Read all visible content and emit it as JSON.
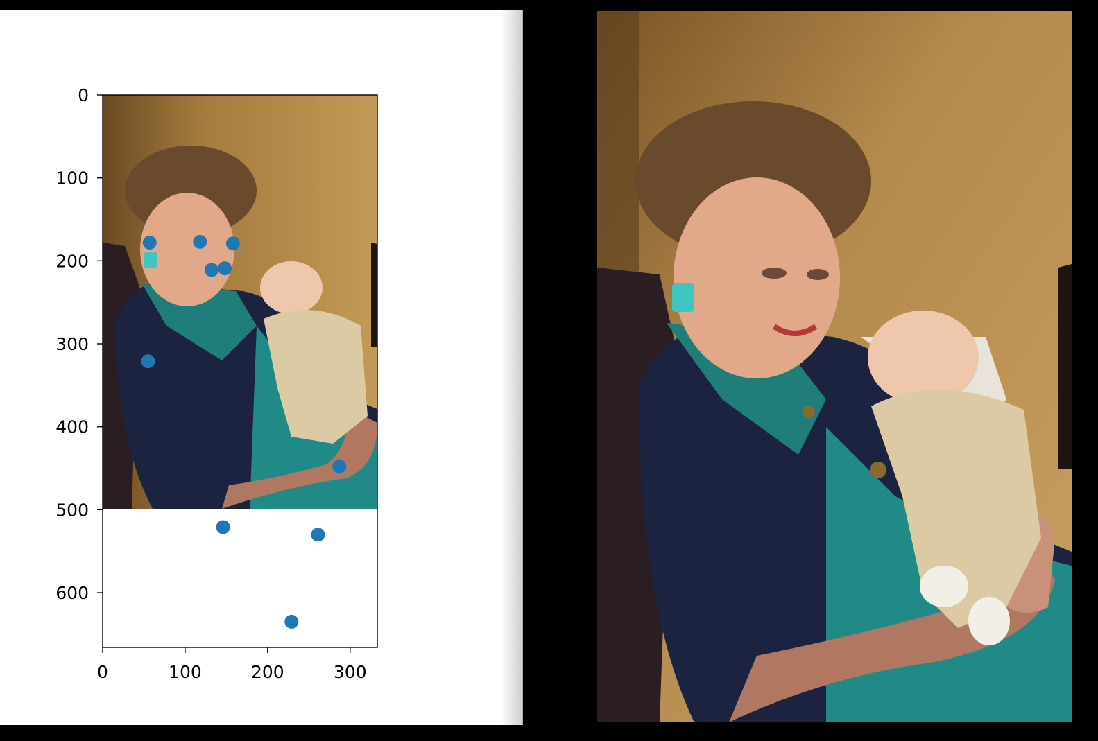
{
  "chart_data": {
    "type": "scatter",
    "title": "",
    "xlabel": "",
    "ylabel": "",
    "xlim": [
      0,
      333
    ],
    "ylim": [
      666,
      0
    ],
    "image_extent_y": 500,
    "xticks": [
      0,
      100,
      200,
      300
    ],
    "yticks": [
      0,
      100,
      200,
      300,
      400,
      500,
      600
    ],
    "grid": false,
    "point_color": "#1f77b4",
    "x": [
      57,
      118,
      158,
      132,
      148,
      55,
      287,
      146,
      261,
      229
    ],
    "y": [
      178,
      177,
      179,
      211,
      209,
      321,
      448,
      521,
      530,
      635
    ]
  },
  "colors": {
    "background": "#000000",
    "figure": "#ffffff",
    "wall": "#b58a4a",
    "dress": "#1c2340",
    "teal": "#1f8a86",
    "earring": "#3fc6c2",
    "skin": "#e2a88a",
    "hair": "#6a4a2c",
    "baby_suit": "#dccaa5"
  }
}
